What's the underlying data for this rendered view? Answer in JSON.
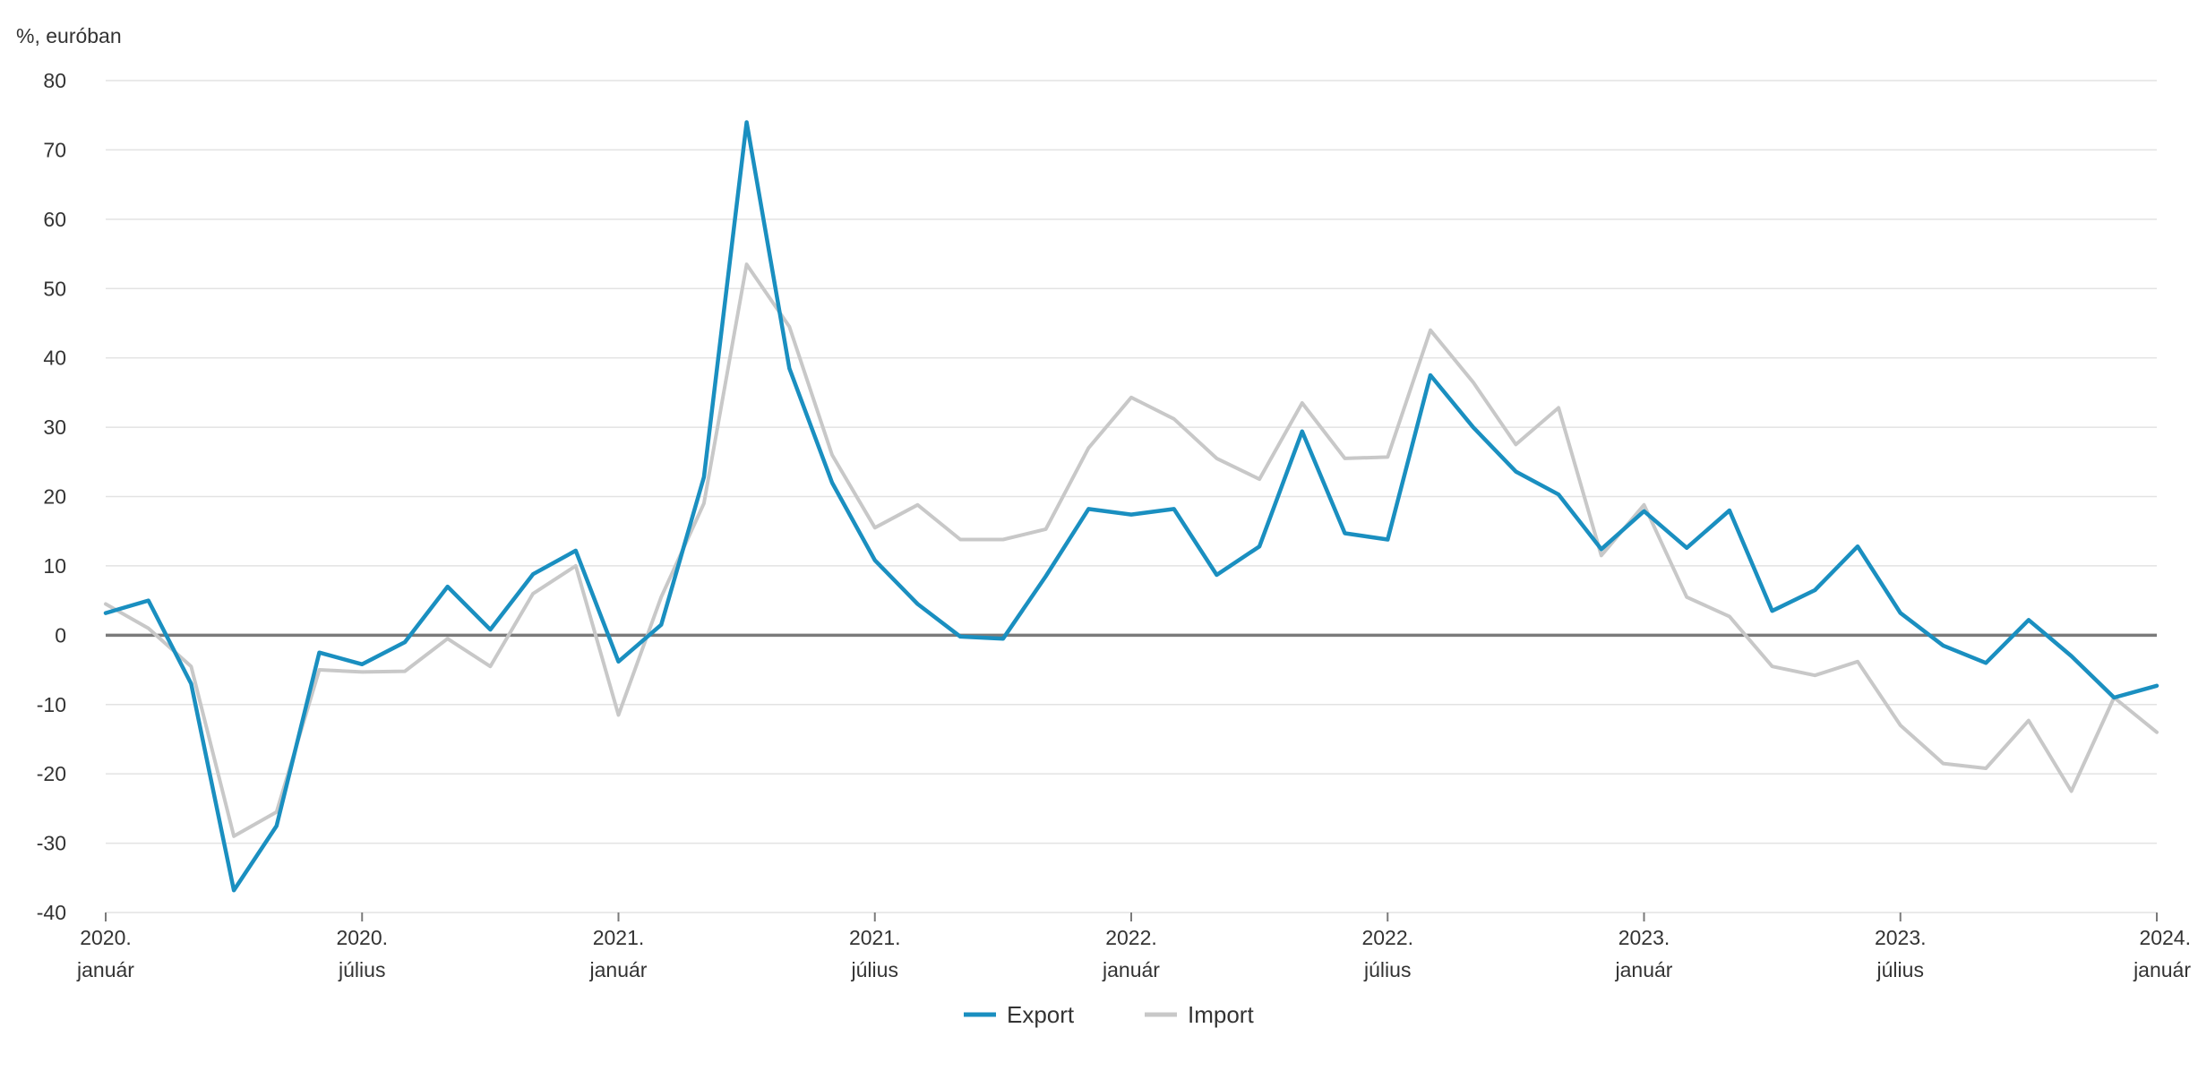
{
  "chart_data": {
    "type": "line",
    "title": "",
    "ylabel": "%, euróban",
    "xlabel": "",
    "ylim": [
      -40,
      80
    ],
    "yticks": [
      -40,
      -30,
      -20,
      -10,
      0,
      10,
      20,
      30,
      40,
      50,
      60,
      70,
      80
    ],
    "grid": true,
    "legend_position": "bottom-center",
    "x_ticks": [
      {
        "index": 0,
        "line1": "2020.",
        "line2": "január"
      },
      {
        "index": 6,
        "line1": "2020.",
        "line2": "július"
      },
      {
        "index": 12,
        "line1": "2021.",
        "line2": "január"
      },
      {
        "index": 18,
        "line1": "2021.",
        "line2": "július"
      },
      {
        "index": 24,
        "line1": "2022.",
        "line2": "január"
      },
      {
        "index": 30,
        "line1": "2022.",
        "line2": "július"
      },
      {
        "index": 36,
        "line1": "2023.",
        "line2": "január"
      },
      {
        "index": 42,
        "line1": "2023.",
        "line2": "július"
      },
      {
        "index": 48,
        "line1": "2024.",
        "line2": "január"
      }
    ],
    "x_count": 49,
    "series": [
      {
        "name": "Export",
        "color": "#1a8fc0",
        "values": [
          3.2,
          5.0,
          -7.0,
          -36.8,
          -27.5,
          -2.5,
          -4.2,
          -1.0,
          7.0,
          0.8,
          8.8,
          12.2,
          -3.8,
          1.5,
          22.8,
          74.0,
          38.5,
          22.0,
          10.8,
          4.5,
          -0.2,
          -0.5,
          8.5,
          18.2,
          17.4,
          18.2,
          8.7,
          12.8,
          29.4,
          14.7,
          13.8,
          37.5,
          30.0,
          23.6,
          20.3,
          12.4,
          17.9,
          12.6,
          18.0,
          3.5,
          6.5,
          12.8,
          3.2,
          -1.5,
          -4.0,
          2.2,
          -3.0,
          -9.0,
          -7.3
        ]
      },
      {
        "name": "Import",
        "color": "#c8c8c8",
        "values": [
          4.5,
          1.0,
          -4.5,
          -29.0,
          -25.5,
          -5.0,
          -5.3,
          -5.2,
          -0.5,
          -4.5,
          6.0,
          10.0,
          -11.5,
          5.5,
          19.0,
          53.5,
          44.5,
          26.0,
          15.5,
          18.8,
          13.8,
          13.8,
          15.3,
          27.0,
          34.3,
          31.2,
          25.5,
          22.5,
          33.5,
          25.5,
          25.7,
          44.0,
          36.5,
          27.5,
          32.8,
          11.5,
          18.8,
          5.5,
          2.7,
          -4.5,
          -5.8,
          -3.8,
          -13.0,
          -18.5,
          -19.2,
          -12.3,
          -22.5,
          -9.0,
          -14.0
        ]
      }
    ]
  }
}
